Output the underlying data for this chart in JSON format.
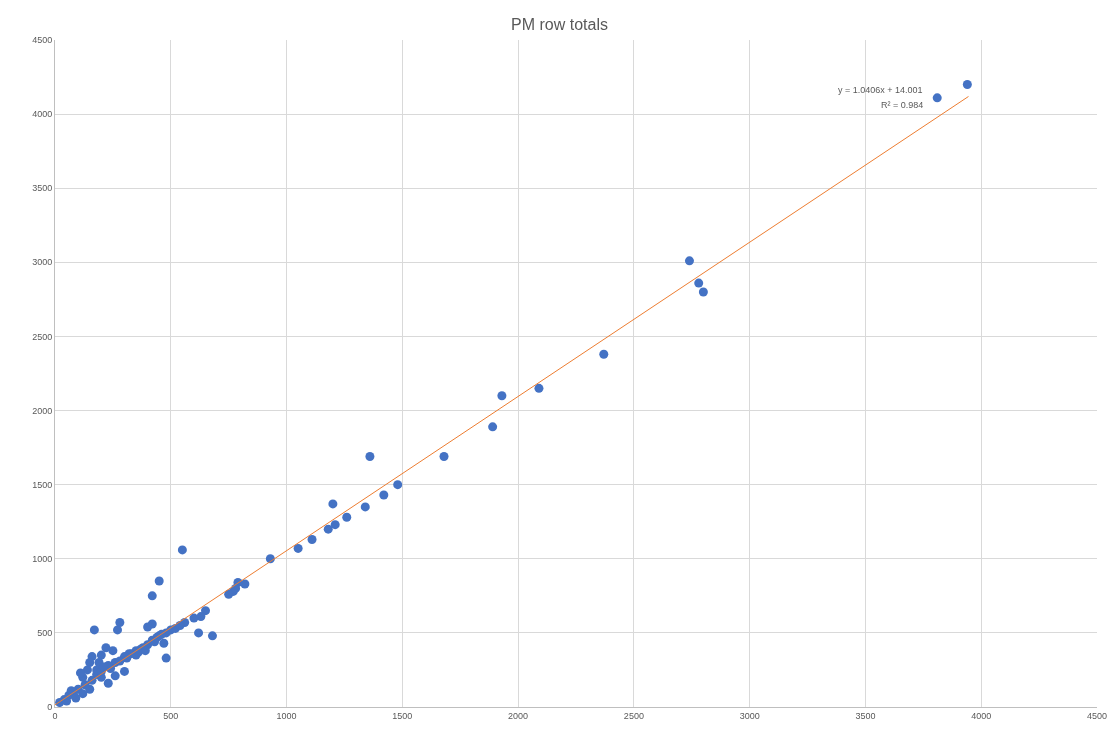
{
  "chart_data": {
    "type": "scatter",
    "title": "PM row totals",
    "xlim": [
      0,
      4500
    ],
    "xticks": [
      0,
      500,
      1000,
      1500,
      2000,
      2500,
      3000,
      3500,
      4000,
      4500
    ],
    "ylim": [
      0,
      4500
    ],
    "yticks": [
      0,
      500,
      1000,
      1500,
      2000,
      2500,
      3000,
      3500,
      4000,
      4500
    ],
    "grid": true,
    "marker": "circle",
    "series": [
      {
        "color": "#4472c4",
        "x": [
          3940,
          3810,
          2740,
          2780,
          2800,
          2370,
          1930,
          2090,
          1890,
          1680,
          1360,
          1480,
          1420,
          1340,
          1200,
          1260,
          1210,
          1180,
          1110,
          1050,
          930,
          820,
          790,
          770,
          750,
          780,
          680,
          620,
          650,
          630,
          600,
          560,
          550,
          450,
          420,
          480,
          500,
          480,
          450,
          420,
          400,
          380,
          420,
          400,
          350,
          320,
          300,
          280,
          270,
          260,
          240,
          220,
          200,
          250,
          170,
          160,
          150,
          140,
          180,
          200,
          160,
          130,
          120,
          100,
          80,
          60,
          40,
          20,
          110,
          180,
          230,
          300,
          330,
          350,
          370,
          230,
          200,
          150,
          90,
          70,
          50,
          260,
          280,
          310,
          360,
          440,
          460,
          520,
          540,
          470,
          430,
          390,
          190,
          210,
          120
        ],
        "values": [
          4200,
          4110,
          3010,
          2860,
          2800,
          2380,
          2100,
          2150,
          1890,
          1690,
          1690,
          1500,
          1430,
          1350,
          1370,
          1280,
          1230,
          1200,
          1130,
          1070,
          1000,
          830,
          840,
          780,
          760,
          800,
          480,
          500,
          650,
          610,
          600,
          570,
          1060,
          850,
          750,
          330,
          520,
          500,
          480,
          450,
          420,
          400,
          560,
          540,
          380,
          360,
          340,
          570,
          520,
          300,
          260,
          400,
          350,
          380,
          520,
          340,
          300,
          250,
          220,
          200,
          180,
          150,
          200,
          120,
          100,
          80,
          50,
          30,
          230,
          250,
          160,
          240,
          360,
          350,
          390,
          280,
          240,
          120,
          60,
          110,
          40,
          210,
          310,
          330,
          370,
          470,
          490,
          530,
          550,
          430,
          440,
          380,
          300,
          270,
          90
        ]
      },
      {
        "type": "line",
        "color": "#ed7d31",
        "marker": "none",
        "x": [
          0,
          3945
        ],
        "values": [
          14,
          4119
        ]
      }
    ],
    "annotations": [
      "y = 1.0406x + 14.001",
      "R² = 0.984"
    ]
  }
}
